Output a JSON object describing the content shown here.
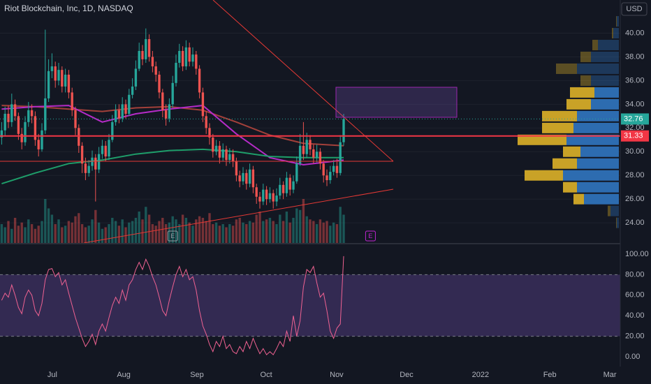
{
  "chart_data": [
    {
      "type": "candlestick",
      "title": "Riot Blockchain, Inc, 1D, NASDAQ",
      "currency": "USD",
      "xlim": [
        -0.5,
        184.5
      ],
      "ylim": [
        22.3,
        42.8
      ],
      "yticks": [
        {
          "value": 24,
          "label": "24.00"
        },
        {
          "value": 26,
          "label": "26.00"
        },
        {
          "value": 28,
          "label": "28.00"
        },
        {
          "value": 30,
          "label": "30.00"
        },
        {
          "value": 32,
          "label": "32.00"
        },
        {
          "value": 34,
          "label": "34.00"
        },
        {
          "value": 36,
          "label": "36.00"
        },
        {
          "value": 38,
          "label": "38.00"
        },
        {
          "value": 40,
          "label": "40.00"
        }
      ],
      "grid": true,
      "up_color": "#26a69a",
      "down_color": "#ef5350",
      "open": [
        31.2,
        31.8,
        33.2,
        32.5,
        34.0,
        33.0,
        31.5,
        30.8,
        32.5,
        33.5,
        33.0,
        31.0,
        30.2,
        31.8,
        34.5,
        36.8,
        37.2,
        36.0,
        36.9,
        35.5,
        36.5,
        35.0,
        33.5,
        32.0,
        30.5,
        29.0,
        28.2,
        28.8,
        29.5,
        28.5,
        29.8,
        30.5,
        29.6,
        31.0,
        32.5,
        33.5,
        32.8,
        34.0,
        33.2,
        34.8,
        35.5,
        37.0,
        38.5,
        37.8,
        39.5,
        38.0,
        37.2,
        36.5,
        35.0,
        33.5,
        32.8,
        34.0,
        35.8,
        37.5,
        38.5,
        37.2,
        38.8,
        37.6,
        38.2,
        37.0,
        35.0,
        33.0,
        32.0,
        31.2,
        30.0,
        30.5,
        29.5,
        30.2,
        29.3,
        29.8,
        29.2,
        28.0,
        27.5,
        28.2,
        27.3,
        28.5,
        27.0,
        26.2,
        25.8,
        26.8,
        26.0,
        26.5,
        25.8,
        26.3,
        27.2,
        26.5,
        27.8,
        26.8,
        27.5,
        29.0,
        30.5,
        29.8,
        31.0,
        30.2,
        29.5,
        30.0,
        29.0,
        28.0,
        27.6,
        28.3,
        28.8,
        28.2,
        30.8
      ],
      "high": [
        32.5,
        33.8,
        33.9,
        34.9,
        34.4,
        33.3,
        32.0,
        33.0,
        34.2,
        34.0,
        33.4,
        31.5,
        32.4,
        40.3,
        37.8,
        38.3,
        37.6,
        37.5,
        37.2,
        37.0,
        36.9,
        35.4,
        33.8,
        32.3,
        30.8,
        29.5,
        29.3,
        30.1,
        29.8,
        30.4,
        31.0,
        30.9,
        31.5,
        33.1,
        34.0,
        34.0,
        34.6,
        34.4,
        35.3,
        36.2,
        37.7,
        39.2,
        39.0,
        40.4,
        39.9,
        38.5,
        37.6,
        36.8,
        35.3,
        34.0,
        34.5,
        36.4,
        38.2,
        39.1,
        38.9,
        39.4,
        39.2,
        38.8,
        38.5,
        37.3,
        35.4,
        33.4,
        32.4,
        31.5,
        31.0,
        30.9,
        30.7,
        30.5,
        30.3,
        30.2,
        29.5,
        28.4,
        28.7,
        28.5,
        29.0,
        28.8,
        27.3,
        26.6,
        27.3,
        27.1,
        27.0,
        26.8,
        26.9,
        27.8,
        27.5,
        28.3,
        28.1,
        28.0,
        29.6,
        31.5,
        32.5,
        31.6,
        31.4,
        30.6,
        30.6,
        30.3,
        29.3,
        28.5,
        28.8,
        29.3,
        29.4,
        31.4,
        33.2
      ],
      "low": [
        30.6,
        31.3,
        32.0,
        32.1,
        32.6,
        31.0,
        30.2,
        30.5,
        32.1,
        32.4,
        30.5,
        29.6,
        30.0,
        31.5,
        34.2,
        36.2,
        35.4,
        35.6,
        35.0,
        35.0,
        34.5,
        33.0,
        31.4,
        29.9,
        28.2,
        27.6,
        27.9,
        28.4,
        25.8,
        28.2,
        29.4,
        29.2,
        29.3,
        30.8,
        32.2,
        32.4,
        32.5,
        32.8,
        33.0,
        34.5,
        35.2,
        36.8,
        37.3,
        37.5,
        37.6,
        36.7,
        35.9,
        34.5,
        32.9,
        32.2,
        32.5,
        33.7,
        35.5,
        37.1,
        36.8,
        36.9,
        37.2,
        37.2,
        36.5,
        34.5,
        32.5,
        31.5,
        30.6,
        29.5,
        29.7,
        29.0,
        29.2,
        28.8,
        29.0,
        28.7,
        27.5,
        27.0,
        27.2,
        26.8,
        27.0,
        26.5,
        25.6,
        25.2,
        25.5,
        25.5,
        25.7,
        25.2,
        25.4,
        26.0,
        26.0,
        26.2,
        26.3,
        26.5,
        27.3,
        28.8,
        29.3,
        29.5,
        29.7,
        29.0,
        29.1,
        28.5,
        27.4,
        27.1,
        27.3,
        28.0,
        27.8,
        28.0,
        30.5
      ],
      "close": [
        31.8,
        33.2,
        32.5,
        34.0,
        33.0,
        31.5,
        30.8,
        32.5,
        33.5,
        33.0,
        31.0,
        30.2,
        31.8,
        34.5,
        36.8,
        37.2,
        36.0,
        36.9,
        35.5,
        36.5,
        35.0,
        33.5,
        32.0,
        30.5,
        29.0,
        28.2,
        28.8,
        29.5,
        28.5,
        29.8,
        30.5,
        29.6,
        31.0,
        32.5,
        33.5,
        32.8,
        34.0,
        33.2,
        34.8,
        35.5,
        37.0,
        38.5,
        37.8,
        39.5,
        38.0,
        37.2,
        36.5,
        35.0,
        33.5,
        32.8,
        34.0,
        35.8,
        37.5,
        38.5,
        37.2,
        38.8,
        37.6,
        38.2,
        37.0,
        35.0,
        33.0,
        32.0,
        31.2,
        30.0,
        30.5,
        29.5,
        30.2,
        29.3,
        29.8,
        29.2,
        28.0,
        27.5,
        28.2,
        27.3,
        28.5,
        27.0,
        26.2,
        25.8,
        26.8,
        26.0,
        26.5,
        25.8,
        26.3,
        27.2,
        26.5,
        27.8,
        26.8,
        27.5,
        29.0,
        30.5,
        29.8,
        31.0,
        30.2,
        29.5,
        30.0,
        29.0,
        28.0,
        27.6,
        28.3,
        28.8,
        28.2,
        30.8,
        32.76
      ],
      "volume": [
        12,
        10,
        14,
        9,
        16,
        11,
        13,
        10,
        15,
        12,
        9,
        11,
        14,
        28,
        22,
        18,
        12,
        15,
        10,
        11,
        14,
        13,
        17,
        19,
        12,
        10,
        11,
        15,
        21,
        13,
        9,
        10,
        12,
        16,
        14,
        11,
        15,
        10,
        13,
        14,
        16,
        20,
        15,
        23,
        18,
        12,
        11,
        14,
        16,
        12,
        13,
        17,
        15,
        12,
        18,
        16,
        13,
        11,
        15,
        17,
        16,
        14,
        19,
        12,
        13,
        11,
        12,
        10,
        12,
        11,
        15,
        16,
        13,
        12,
        14,
        13,
        18,
        20,
        14,
        15,
        16,
        14,
        12,
        18,
        14,
        20,
        13,
        16,
        22,
        21,
        28,
        17,
        15,
        14,
        12,
        15,
        13,
        14,
        11,
        13,
        12,
        23,
        18
      ],
      "vlim": [
        0,
        40
      ],
      "moving_averages": [
        {
          "color": "#a3403a",
          "x": [
            0,
            10,
            20,
            30,
            40,
            50,
            60,
            70,
            80,
            90,
            102
          ],
          "values": [
            33.9,
            33.8,
            33.6,
            33.4,
            33.7,
            33.8,
            33.5,
            32.5,
            31.4,
            30.7,
            30.5
          ]
        },
        {
          "color": "#b52bc7",
          "x": [
            0,
            10,
            20,
            30,
            40,
            50,
            60,
            70,
            80,
            90,
            102
          ],
          "values": [
            33.6,
            33.8,
            33.9,
            32.5,
            33.2,
            33.6,
            33.9,
            31.5,
            29.5,
            28.9,
            29.3
          ]
        },
        {
          "color": "#1e9e6a",
          "x": [
            0,
            10,
            20,
            30,
            40,
            50,
            60,
            70,
            80,
            90,
            102
          ],
          "values": [
            27.3,
            28.2,
            29.0,
            29.3,
            29.8,
            30.1,
            30.2,
            30.0,
            29.6,
            29.5,
            29.5
          ]
        }
      ],
      "volume_profile": {
        "levels": [
          24,
          25,
          26,
          27,
          28,
          29,
          30,
          31,
          32,
          33,
          34,
          35,
          36,
          37,
          38,
          39,
          40,
          41
        ],
        "up": [
          1,
          4,
          15,
          20,
          55,
          35,
          25,
          70,
          45,
          50,
          35,
          35,
          15,
          30,
          15,
          8,
          2,
          1
        ],
        "down": [
          3,
          12,
          50,
          60,
          80,
          60,
          55,
          75,
          65,
          60,
          40,
          35,
          40,
          60,
          40,
          30,
          8,
          3
        ],
        "xlim": [
          0,
          150
        ],
        "value_area": [
          26,
          35
        ],
        "up_color": "#c9a227",
        "down_color": "#2d6cb0"
      },
      "last_price": 32.76,
      "price_line": 31.33,
      "events": [
        {
          "label": "E",
          "x": 51
        },
        {
          "label": "E",
          "x": 110
        }
      ]
    },
    {
      "type": "line",
      "color": "#f06292",
      "xlim": [
        -0.5,
        184.5
      ],
      "ylim": [
        -9.5,
        109.5
      ],
      "yticks": [
        {
          "value": 0,
          "label": "0.00"
        },
        {
          "value": 20,
          "label": "20.00"
        },
        {
          "value": 40,
          "label": "40.00"
        },
        {
          "value": 60,
          "label": "60.00"
        },
        {
          "value": 80,
          "label": "80.00"
        },
        {
          "value": 100,
          "label": "100.00"
        }
      ],
      "band": [
        20,
        80
      ],
      "band_color": "#7e57c2",
      "xticks": [
        {
          "value": 15.1,
          "label": "Jul"
        },
        {
          "value": 36.4,
          "label": "Aug"
        },
        {
          "value": 58.25,
          "label": "Sep"
        },
        {
          "value": 78.9,
          "label": "Oct"
        },
        {
          "value": 99.9,
          "label": "Nov"
        },
        {
          "value": 120.75,
          "label": "Dec"
        },
        {
          "value": 142.8,
          "label": "2022"
        },
        {
          "value": 163.5,
          "label": "Feb"
        },
        {
          "value": 181.4,
          "label": "Mar"
        }
      ],
      "values": [
        55,
        62,
        58,
        70,
        60,
        48,
        42,
        58,
        65,
        60,
        45,
        40,
        52,
        75,
        85,
        86,
        78,
        82,
        70,
        75,
        62,
        50,
        38,
        28,
        18,
        10,
        15,
        22,
        12,
        25,
        32,
        25,
        38,
        50,
        58,
        52,
        65,
        55,
        70,
        75,
        85,
        92,
        85,
        95,
        88,
        78,
        70,
        58,
        45,
        40,
        55,
        68,
        80,
        88,
        78,
        85,
        75,
        78,
        65,
        45,
        30,
        22,
        12,
        5,
        15,
        10,
        20,
        8,
        12,
        5,
        3,
        10,
        5,
        15,
        8,
        18,
        10,
        3,
        8,
        2,
        5,
        2,
        8,
        15,
        10,
        25,
        15,
        40,
        20,
        35,
        68,
        85,
        82,
        88,
        72,
        58,
        62,
        45,
        25,
        18,
        28,
        32,
        98
      ]
    }
  ]
}
